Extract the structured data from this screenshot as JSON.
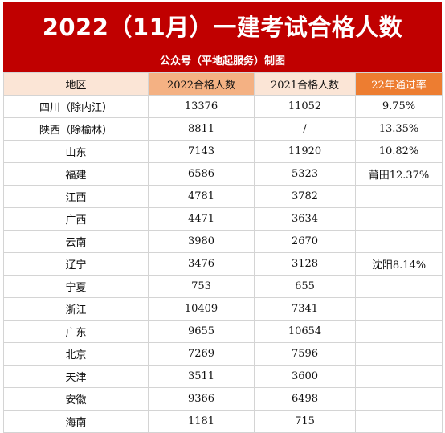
{
  "title": "2022（11月）一建考试合格人数",
  "subtitle": "公众号（平地起服务）制图",
  "table": {
    "headers": [
      "地区",
      "2022合格人数",
      "2021合格人数",
      "22年通过率"
    ],
    "header_colors": [
      "#fbe5d6",
      "#f4b183",
      "#fbe5d6",
      "#ed7d31"
    ],
    "title_bg": "#c00000",
    "rows": [
      [
        "四川（除内江）",
        "13376",
        "11052",
        "9.75%"
      ],
      [
        "陕西（除榆林）",
        "8811",
        "/",
        "13.35%"
      ],
      [
        "山东",
        "7143",
        "11920",
        "10.82%"
      ],
      [
        "福建",
        "6586",
        "5323",
        "莆田12.37%"
      ],
      [
        "江西",
        "4781",
        "3782",
        ""
      ],
      [
        "广西",
        "4471",
        "3634",
        ""
      ],
      [
        "云南",
        "3980",
        "2670",
        ""
      ],
      [
        "辽宁",
        "3476",
        "3128",
        "沈阳8.14%"
      ],
      [
        "宁夏",
        "753",
        "655",
        ""
      ],
      [
        "浙江",
        "10409",
        "7341",
        ""
      ],
      [
        "广东",
        "9655",
        "10654",
        ""
      ],
      [
        "北京",
        "7269",
        "7596",
        ""
      ],
      [
        "天津",
        "3511",
        "3600",
        ""
      ],
      [
        "安徽",
        "9366",
        "6498",
        ""
      ],
      [
        "海南",
        "1181",
        "715",
        ""
      ]
    ]
  }
}
